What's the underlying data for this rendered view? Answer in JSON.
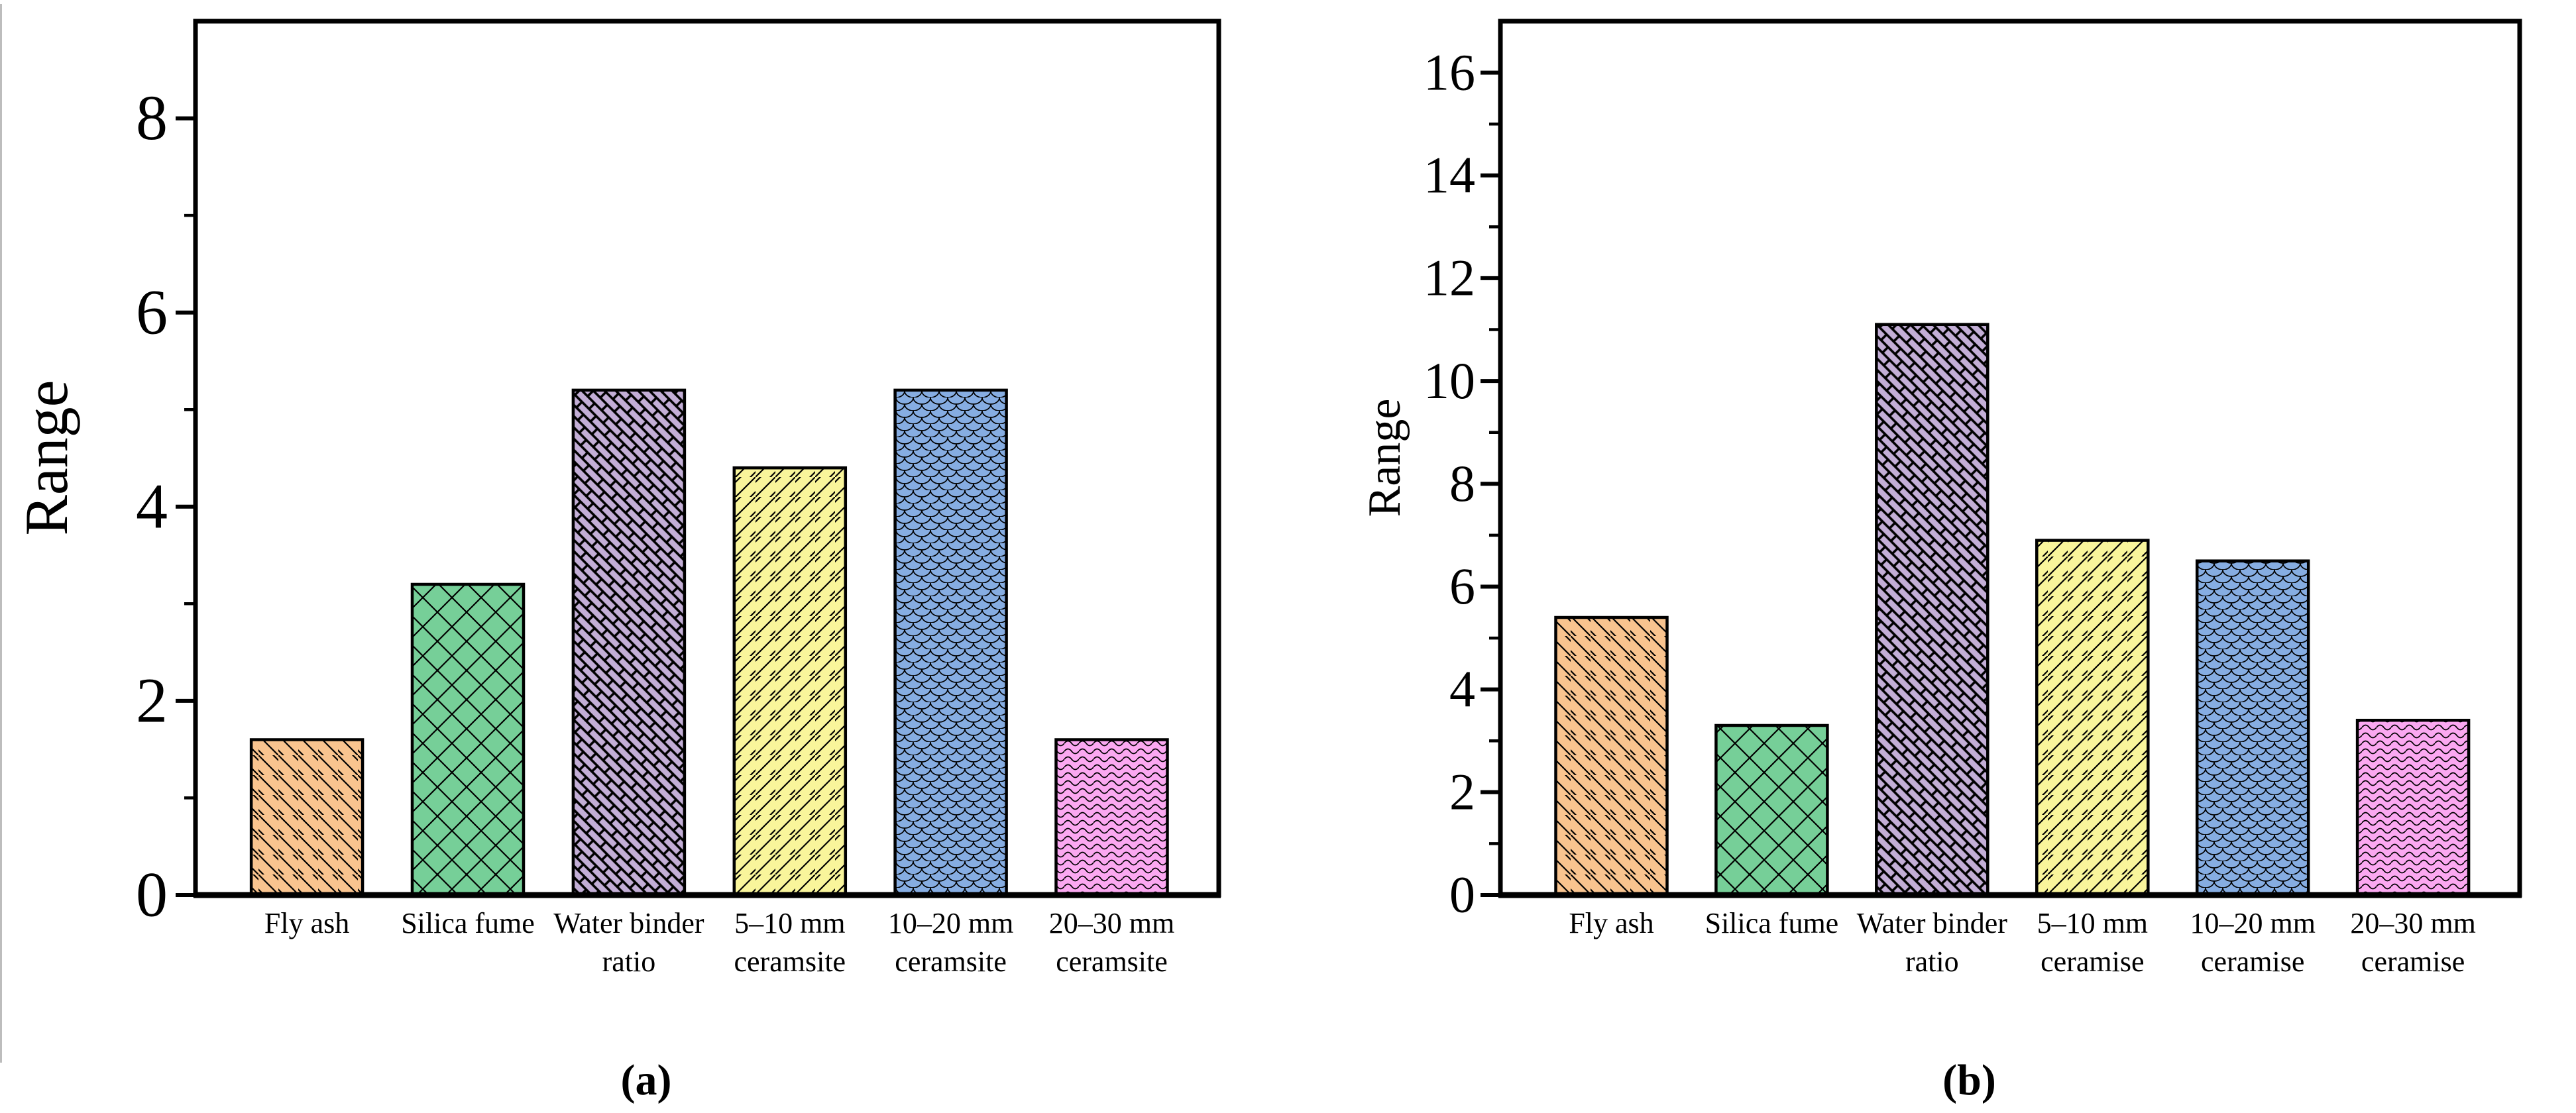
{
  "figure": {
    "background": "#ffffff",
    "divider_color": "#bdbdbd"
  },
  "chart_data": [
    {
      "id": "a",
      "type": "bar",
      "caption": "(a)",
      "ylabel": "Range",
      "categories": [
        [
          "Fly ash"
        ],
        [
          "Silica fume"
        ],
        [
          "Water binder",
          "ratio"
        ],
        [
          "5–10 mm",
          "ceramsite"
        ],
        [
          "10–20 mm",
          "ceramsite"
        ],
        [
          "20–30 mm",
          "ceramsite"
        ]
      ],
      "values": [
        1.6,
        3.2,
        5.2,
        4.4,
        5.2,
        1.6
      ],
      "ylim": [
        0,
        9
      ],
      "yticks": [
        0,
        2,
        4,
        6,
        8
      ],
      "minor_ytick_step": 1,
      "grid": false,
      "legend": "none",
      "bar_colors": [
        "#F9C48F",
        "#76CF98",
        "#C3AED6",
        "#F9F59B",
        "#86ADE2",
        "#FBA8F1"
      ],
      "hatches": [
        "diag-back",
        "cross-diamond",
        "brick-45",
        "diag-fwd",
        "scale",
        "wave-horiz"
      ],
      "edge_color": "#000000"
    },
    {
      "id": "b",
      "type": "bar",
      "caption": "(b)",
      "ylabel": "Range",
      "categories": [
        [
          "Fly ash"
        ],
        [
          "Silica fume"
        ],
        [
          "Water binder",
          "ratio"
        ],
        [
          "5–10 mm",
          "ceramise"
        ],
        [
          "10–20 mm",
          "ceramise"
        ],
        [
          "20–30 mm",
          "ceramise"
        ]
      ],
      "values": [
        5.4,
        3.3,
        11.1,
        6.9,
        6.5,
        3.4
      ],
      "ylim": [
        0,
        17
      ],
      "yticks": [
        0,
        2,
        4,
        6,
        8,
        10,
        12,
        14,
        16
      ],
      "minor_ytick_step": 1,
      "grid": false,
      "legend": "none",
      "bar_colors": [
        "#F9C48F",
        "#76CF98",
        "#C3AED6",
        "#F9F59B",
        "#86ADE2",
        "#FBA8F1"
      ],
      "hatches": [
        "diag-back",
        "cross-diamond",
        "brick-45",
        "diag-fwd",
        "scale",
        "wave-horiz"
      ],
      "edge_color": "#000000"
    }
  ]
}
